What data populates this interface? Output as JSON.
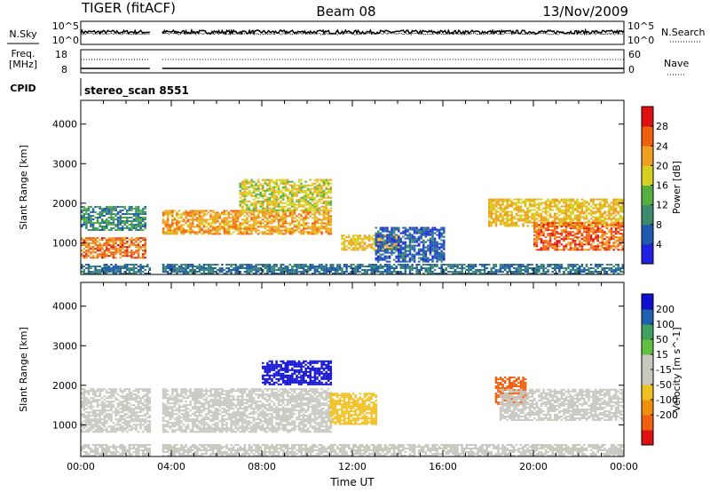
{
  "header": {
    "radar_title": "TIGER (fitACF)",
    "beam": "Beam 08",
    "date": "13/Nov/2009"
  },
  "panels": {
    "nsky": {
      "label": "N.Sky",
      "left_ticks": [
        "10^5",
        "10^0"
      ],
      "right_label": "N.Search",
      "right_ticks": [
        "10^5",
        "10^0"
      ]
    },
    "freq": {
      "label": "Freq.",
      "unit": "[MHz]",
      "left_ticks": [
        "18",
        "8"
      ],
      "right_label": "Nave",
      "right_ticks": [
        "60",
        "0"
      ]
    },
    "cpid": {
      "label": "CPID",
      "mode": "stereo_scan 8551"
    }
  },
  "colors": {
    "power_scale": [
      "#2020e0",
      "#205ab0",
      "#3c8a6e",
      "#54b040",
      "#d8d020",
      "#f0a020",
      "#f06010",
      "#e01010"
    ],
    "velocity_scale": [
      "#e01010",
      "#f06010",
      "#f09010",
      "#f0c020",
      "#c8c8c0",
      "#c8c8c0",
      "#60c040",
      "#40a060",
      "#2060b0",
      "#1010d0"
    ]
  },
  "chart_data": [
    {
      "type": "heatmap",
      "name": "power",
      "ylabel": "Slant Range [km]",
      "yticks": [
        "1000",
        "2000",
        "3000",
        "4000"
      ],
      "ylim": [
        200,
        4600
      ],
      "colorbar_label": "Power [dB]",
      "colorbar_ticks": [
        "4",
        "8",
        "12",
        "16",
        "20",
        "24",
        "28"
      ],
      "colorbar_range": [
        0,
        32
      ],
      "data_gap_ut": [
        [
          "03:05",
          "03:35"
        ]
      ],
      "echo_regions": [
        {
          "t": [
            0.0,
            2.9
          ],
          "range_km": [
            1300,
            1900
          ],
          "value": 10
        },
        {
          "t": [
            0.0,
            2.9
          ],
          "range_km": [
            600,
            1100
          ],
          "value": 25
        },
        {
          "t": [
            3.6,
            11.0
          ],
          "range_km": [
            1200,
            1800
          ],
          "value": 22
        },
        {
          "t": [
            7.0,
            11.0
          ],
          "range_km": [
            1800,
            2600
          ],
          "value": 18
        },
        {
          "t": [
            11.5,
            14.0
          ],
          "range_km": [
            800,
            1200
          ],
          "value": 20
        },
        {
          "t": [
            13.0,
            16.0
          ],
          "range_km": [
            500,
            1400
          ],
          "value": 6
        },
        {
          "t": [
            18.0,
            24.0
          ],
          "range_km": [
            1400,
            2100
          ],
          "value": 20
        },
        {
          "t": [
            20.0,
            24.0
          ],
          "range_km": [
            800,
            1500
          ],
          "value": 26
        },
        {
          "t": [
            0.0,
            24.0
          ],
          "range_km": [
            200,
            450
          ],
          "value": 8
        }
      ]
    },
    {
      "type": "heatmap",
      "name": "velocity",
      "ylabel": "Slant Range [km]",
      "yticks": [
        "1000",
        "2000",
        "3000",
        "4000"
      ],
      "ylim": [
        200,
        4600
      ],
      "xlabel": "Time UT",
      "xticks": [
        "00:00",
        "04:00",
        "08:00",
        "12:00",
        "16:00",
        "20:00",
        "00:00"
      ],
      "xlim": [
        0,
        24
      ],
      "colorbar_label": "Velocity [m s^-1]",
      "colorbar_ticks": [
        "200",
        "100",
        "50",
        "15",
        "-15",
        "-50",
        "-100",
        "-200"
      ],
      "colorbar_range": [
        -250,
        250
      ],
      "data_gap_ut": [
        [
          "03:05",
          "03:35"
        ]
      ],
      "echo_regions": [
        {
          "t": [
            0.0,
            11.0
          ],
          "range_km": [
            800,
            1900
          ],
          "value": 0
        },
        {
          "t": [
            8.0,
            11.0
          ],
          "range_km": [
            2000,
            2600
          ],
          "value": 220
        },
        {
          "t": [
            11.0,
            13.0
          ],
          "range_km": [
            1000,
            1800
          ],
          "value": -70
        },
        {
          "t": [
            18.3,
            19.7
          ],
          "range_km": [
            1500,
            2200
          ],
          "value": -180
        },
        {
          "t": [
            18.5,
            24.0
          ],
          "range_km": [
            1100,
            1900
          ],
          "value": 0
        },
        {
          "t": [
            0.0,
            24.0
          ],
          "range_km": [
            200,
            500
          ],
          "value": 30
        }
      ]
    }
  ]
}
